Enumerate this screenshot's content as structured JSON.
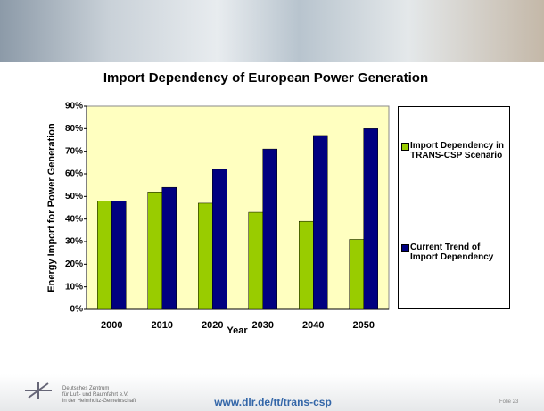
{
  "chart_data": {
    "type": "bar",
    "title": "Import Dependency of European Power Generation",
    "xlabel": "Year",
    "ylabel": "Energy Import for Power Generation",
    "categories": [
      "2000",
      "2010",
      "2020",
      "2030",
      "2040",
      "2050"
    ],
    "series": [
      {
        "name": "Import Dependency in TRANS-CSP Scenario",
        "color": "#99cc00",
        "values": [
          48,
          52,
          47,
          43,
          39,
          31
        ]
      },
      {
        "name": "Current Trend of Import Dependency",
        "color": "#000080",
        "values": [
          48,
          54,
          62,
          71,
          77,
          80
        ]
      }
    ],
    "ylim": [
      0,
      90
    ],
    "yticks": [
      {
        "value": 0,
        "label": "0%"
      },
      {
        "value": 10,
        "label": "10%"
      },
      {
        "value": 20,
        "label": "20%"
      },
      {
        "value": 30,
        "label": "30%"
      },
      {
        "value": 40,
        "label": "40%"
      },
      {
        "value": 50,
        "label": "50%"
      },
      {
        "value": 60,
        "label": "60%"
      },
      {
        "value": 70,
        "label": "70%"
      },
      {
        "value": 80,
        "label": "80%"
      },
      {
        "value": 90,
        "label": "90%"
      }
    ],
    "grid": false,
    "plot_background": "#ffffc0"
  },
  "footer": {
    "url": "www.dlr.de/tt/trans-csp",
    "slide": "Folie 23",
    "org": [
      "Deutsches Zentrum",
      "für Luft- und Raumfahrt e.V.",
      "in der Helmholtz-Gemeinschaft"
    ]
  }
}
